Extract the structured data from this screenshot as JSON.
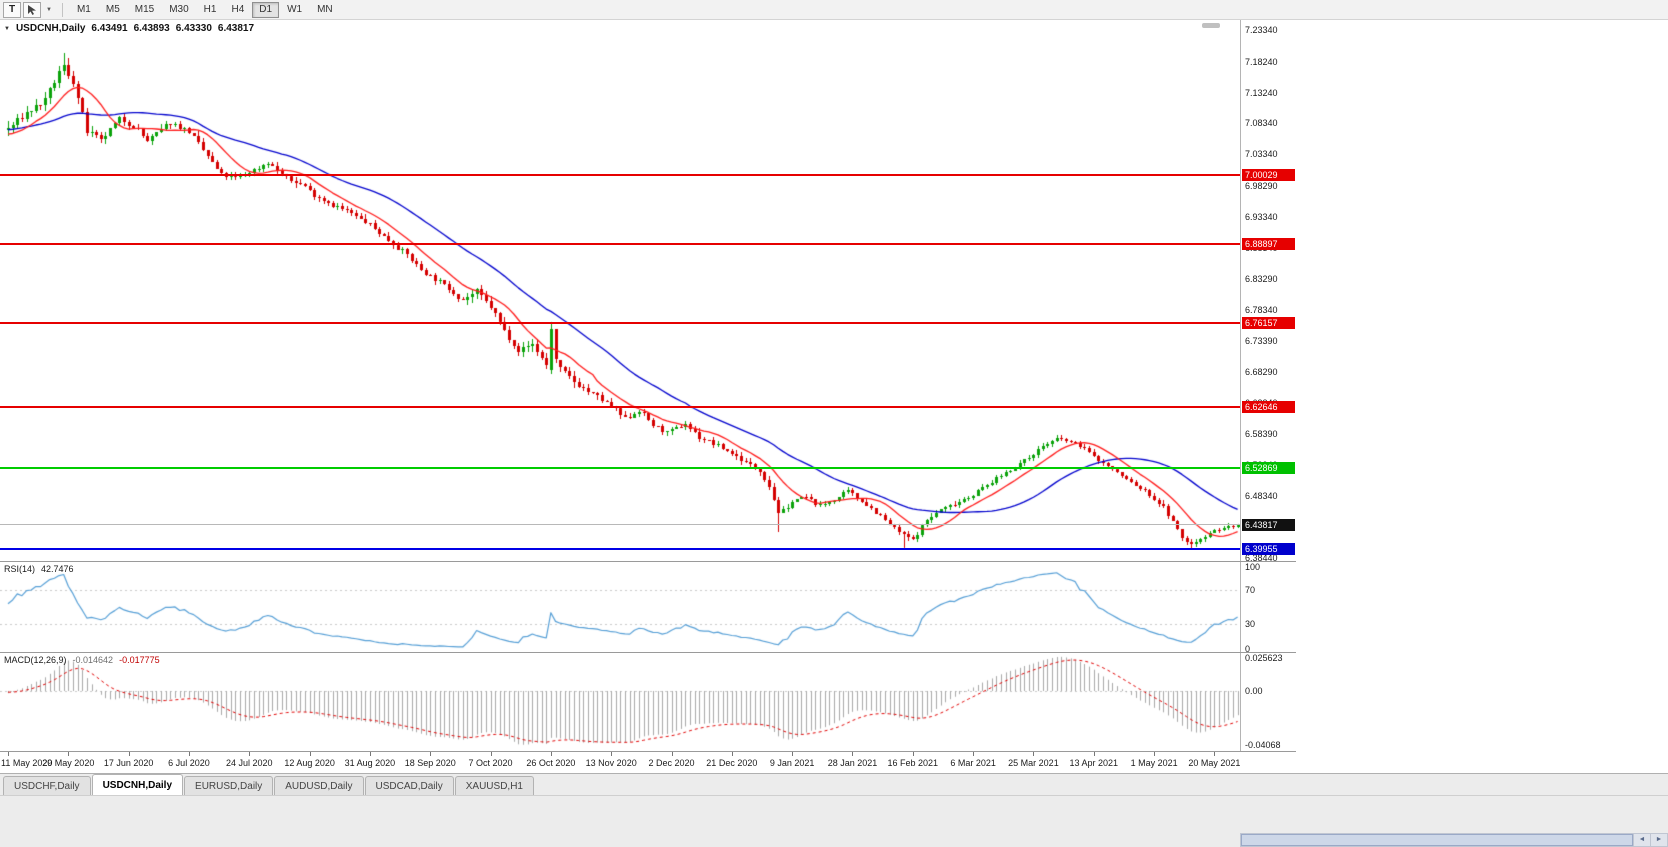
{
  "toolbar": {
    "t_button": "T",
    "timeframes": [
      "M1",
      "M5",
      "M15",
      "M30",
      "H1",
      "H4",
      "D1",
      "W1",
      "MN"
    ],
    "active_timeframe": "D1"
  },
  "icons": {
    "collapse_marker": "▼",
    "dropdown_caret": "▼",
    "scroll_left": "◄",
    "scroll_right": "►"
  },
  "chart": {
    "title": "USDCNH,Daily",
    "ohlc": {
      "open": "6.43491",
      "high": "6.43893",
      "low": "6.43330",
      "close": "6.43817"
    },
    "colors": {
      "up": "#0ba30b",
      "down": "#d40000",
      "ma_fast": "#ff1a1a",
      "ma_slow": "#0000cd"
    },
    "y_axis_labels": [
      "7.23340",
      "7.18240",
      "7.13240",
      "7.08340",
      "7.03340",
      "6.98290",
      "6.93340",
      "6.88340",
      "6.83290",
      "6.78340",
      "6.73390",
      "6.68290",
      "6.63340",
      "6.58390",
      "6.53340",
      "6.48340",
      "6.43340",
      "6.38440"
    ],
    "x_axis_labels": [
      {
        "i": 0,
        "label": "11 May 2020"
      },
      {
        "i": 13,
        "label": "29 May 2020"
      },
      {
        "i": 26,
        "label": "17 Jun 2020"
      },
      {
        "i": 39,
        "label": "6 Jul 2020"
      },
      {
        "i": 52,
        "label": "24 Jul 2020"
      },
      {
        "i": 65,
        "label": "12 Aug 2020"
      },
      {
        "i": 78,
        "label": "31 Aug 2020"
      },
      {
        "i": 91,
        "label": "18 Sep 2020"
      },
      {
        "i": 104,
        "label": "7 Oct 2020"
      },
      {
        "i": 117,
        "label": "26 Oct 2020"
      },
      {
        "i": 130,
        "label": "13 Nov 2020"
      },
      {
        "i": 143,
        "label": "2 Dec 2020"
      },
      {
        "i": 156,
        "label": "21 Dec 2020"
      },
      {
        "i": 169,
        "label": "9 Jan 2021"
      },
      {
        "i": 182,
        "label": "28 Jan 2021"
      },
      {
        "i": 195,
        "label": "16 Feb 2021"
      },
      {
        "i": 208,
        "label": "6 Mar 2021"
      },
      {
        "i": 221,
        "label": "25 Mar 2021"
      },
      {
        "i": 234,
        "label": "13 Apr 2021"
      },
      {
        "i": 247,
        "label": "1 May 2021"
      },
      {
        "i": 260,
        "label": "20 May 2021"
      }
    ],
    "levels": [
      {
        "value": 7.00029,
        "label": "7.00029",
        "line": "#e60000",
        "lw": 2,
        "bg": "#e60000",
        "fg": "#ffffff"
      },
      {
        "value": 6.88897,
        "label": "6.88897",
        "line": "#e60000",
        "lw": 2,
        "bg": "#e60000",
        "fg": "#ffffff"
      },
      {
        "value": 6.76157,
        "label": "6.76157",
        "line": "#e60000",
        "lw": 2,
        "bg": "#e60000",
        "fg": "#ffffff"
      },
      {
        "value": 6.62646,
        "label": "6.62646",
        "line": "#e60000",
        "lw": 2,
        "bg": "#e60000",
        "fg": "#ffffff"
      },
      {
        "value": 6.52869,
        "label": "6.52869",
        "line": "#00cc00",
        "lw": 2,
        "bg": "#00c000",
        "fg": "#ffffff"
      },
      {
        "value": 6.43817,
        "label": "6.43817",
        "line": "#b8b8b8",
        "lw": 1,
        "bg": "#111111",
        "fg": "#ffffff"
      },
      {
        "value": 6.39955,
        "label": "6.39955",
        "line": "#0000e6",
        "lw": 2,
        "bg": "#0000cc",
        "fg": "#ffffff"
      }
    ]
  },
  "chart_data": {
    "type": "candlestick",
    "symbol": "USDCNH",
    "period": "Daily",
    "visible_candles": 266,
    "preroll": 60,
    "seed": 7,
    "y_range": [
      6.3795,
      7.2495
    ],
    "ma_fast_period": 10,
    "ma_slow_period": 30,
    "price_anchors": [
      [
        0,
        7.03
      ],
      [
        18,
        7.095
      ],
      [
        34,
        7.055
      ],
      [
        46,
        7.1
      ],
      [
        54,
        7.055
      ],
      [
        60,
        7.075
      ],
      [
        64,
        7.1
      ],
      [
        68,
        7.12
      ],
      [
        71,
        7.165
      ],
      [
        72,
        7.175
      ],
      [
        74,
        7.15
      ],
      [
        77,
        7.07
      ],
      [
        80,
        7.055
      ],
      [
        84,
        7.09
      ],
      [
        87,
        7.08
      ],
      [
        90,
        7.055
      ],
      [
        95,
        7.085
      ],
      [
        99,
        7.07
      ],
      [
        103,
        7.03
      ],
      [
        106,
        7.0
      ],
      [
        109,
        6.995
      ],
      [
        113,
        7.008
      ],
      [
        116,
        7.02
      ],
      [
        120,
        6.995
      ],
      [
        124,
        6.982
      ],
      [
        126,
        6.968
      ],
      [
        130,
        6.952
      ],
      [
        134,
        6.938
      ],
      [
        138,
        6.92
      ],
      [
        142,
        6.895
      ],
      [
        146,
        6.872
      ],
      [
        149,
        6.848
      ],
      [
        151,
        6.838
      ],
      [
        155,
        6.818
      ],
      [
        158,
        6.8
      ],
      [
        161,
        6.812
      ],
      [
        164,
        6.788
      ],
      [
        167,
        6.75
      ],
      [
        170,
        6.718
      ],
      [
        173,
        6.728
      ],
      [
        176,
        6.695
      ],
      [
        177,
        6.715
      ],
      [
        179,
        6.688
      ],
      [
        182,
        6.668
      ],
      [
        185,
        6.652
      ],
      [
        188,
        6.638
      ],
      [
        190,
        6.628
      ],
      [
        193,
        6.608
      ],
      [
        196,
        6.622
      ],
      [
        199,
        6.598
      ],
      [
        202,
        6.585
      ],
      [
        206,
        6.6
      ],
      [
        209,
        6.578
      ],
      [
        212,
        6.568
      ],
      [
        216,
        6.552
      ],
      [
        219,
        6.538
      ],
      [
        222,
        6.525
      ],
      [
        224,
        6.5
      ],
      [
        226,
        6.458
      ],
      [
        228,
        6.462
      ],
      [
        229,
        6.478
      ],
      [
        232,
        6.482
      ],
      [
        235,
        6.468
      ],
      [
        238,
        6.478
      ],
      [
        241,
        6.492
      ],
      [
        244,
        6.476
      ],
      [
        247,
        6.458
      ],
      [
        250,
        6.438
      ],
      [
        253,
        6.421
      ],
      [
        255,
        6.413
      ],
      [
        258,
        6.446
      ],
      [
        261,
        6.462
      ],
      [
        264,
        6.472
      ],
      [
        268,
        6.487
      ],
      [
        271,
        6.502
      ],
      [
        274,
        6.517
      ],
      [
        277,
        6.531
      ],
      [
        280,
        6.546
      ],
      [
        283,
        6.565
      ],
      [
        286,
        6.576
      ],
      [
        289,
        6.571
      ],
      [
        292,
        6.561
      ],
      [
        294,
        6.547
      ],
      [
        297,
        6.532
      ],
      [
        300,
        6.516
      ],
      [
        303,
        6.501
      ],
      [
        306,
        6.486
      ],
      [
        309,
        6.466
      ],
      [
        311,
        6.442
      ],
      [
        313,
        6.416
      ],
      [
        315,
        6.406
      ],
      [
        317,
        6.416
      ],
      [
        319,
        6.426
      ],
      [
        321,
        6.431
      ],
      [
        323,
        6.434
      ],
      [
        325,
        6.438
      ]
    ],
    "volatility_steps": [
      [
        0,
        0.012
      ],
      [
        20,
        0.009
      ],
      [
        45,
        0.0075
      ],
      [
        95,
        0.01
      ],
      [
        135,
        0.0075
      ],
      [
        170,
        0.0065
      ],
      [
        210,
        0.0058
      ],
      [
        248,
        0.0065
      ]
    ],
    "spikes": [
      {
        "i": 12,
        "h": 7.196
      },
      {
        "i": 13,
        "h": 7.188
      },
      {
        "i": 117,
        "o": 6.686,
        "c": 6.752,
        "h": 6.764,
        "l": 6.68
      },
      {
        "i": 118,
        "o": 6.752,
        "c": 6.704
      },
      {
        "i": 166,
        "l": 6.426
      },
      {
        "i": 193,
        "l": 6.401
      },
      {
        "i": 255,
        "l": 6.3985
      }
    ],
    "last_candle": {
      "open": 6.43491,
      "high": 6.43893,
      "low": 6.4333,
      "close": 6.43817
    }
  },
  "rsi": {
    "label": "RSI(14)",
    "value": "42.7476",
    "period": 14,
    "color": "#569fd6",
    "scale_labels": [
      {
        "label": "100",
        "value": 100
      },
      {
        "label": "70",
        "value": 70
      },
      {
        "label": "30",
        "value": 30
      },
      {
        "label": "0",
        "value": 0
      }
    ]
  },
  "macd": {
    "label": "MACD(12,26,9)",
    "value_main": "-0.014642",
    "value_signal": "-0.017775",
    "fast": 12,
    "slow": 26,
    "signal": 9,
    "histogram_color": "#a8a8a8",
    "signal_color": "#e00000",
    "range": [
      -0.04068,
      0.025623
    ],
    "scale_labels": [
      {
        "label": "0.025623",
        "value": 0.025623
      },
      {
        "label": "0.00",
        "value": 0
      },
      {
        "label": "-0.04068",
        "value": -0.04068
      }
    ]
  },
  "tabs": [
    {
      "label": "USDCHF,Daily",
      "active": false
    },
    {
      "label": "USDCNH,Daily",
      "active": true
    },
    {
      "label": "EURUSD,Daily",
      "active": false
    },
    {
      "label": "AUDUSD,Daily",
      "active": false
    },
    {
      "label": "USDCAD,Daily",
      "active": false
    },
    {
      "label": "XAUUSD,H1",
      "active": false
    }
  ]
}
